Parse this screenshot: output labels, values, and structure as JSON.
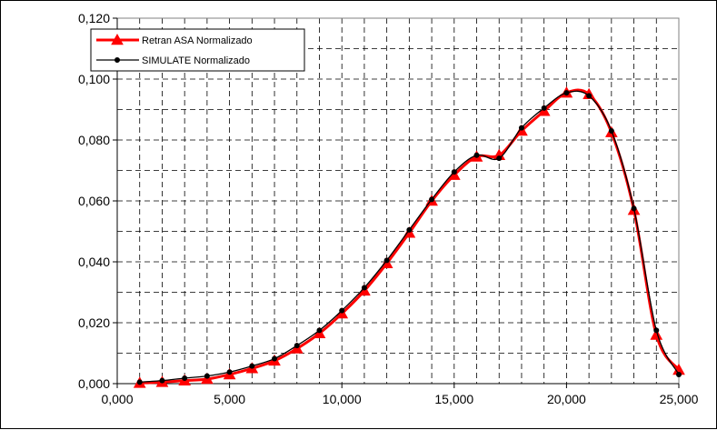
{
  "chart_data": {
    "type": "line",
    "title": "",
    "xlabel": "",
    "ylabel": "",
    "xlim": [
      0,
      25000
    ],
    "ylim": [
      0,
      0.12
    ],
    "grid": true,
    "legend_position": "top-left",
    "x_ticks": [
      {
        "value": 0,
        "label": "0,000"
      },
      {
        "value": 5000,
        "label": "5,000"
      },
      {
        "value": 10000,
        "label": "10,000"
      },
      {
        "value": 15000,
        "label": "15,000"
      },
      {
        "value": 20000,
        "label": "20,000"
      },
      {
        "value": 25000,
        "label": "25,000"
      }
    ],
    "y_ticks": [
      {
        "value": 0,
        "label": "0,000"
      },
      {
        "value": 0.02,
        "label": "0,020"
      },
      {
        "value": 0.04,
        "label": "0,040"
      },
      {
        "value": 0.06,
        "label": "0,060"
      },
      {
        "value": 0.08,
        "label": "0,080"
      },
      {
        "value": 0.1,
        "label": "0,100"
      },
      {
        "value": 0.12,
        "label": "0,120"
      }
    ],
    "x": [
      1000,
      2000,
      3000,
      4000,
      5000,
      6000,
      7000,
      8000,
      9000,
      10000,
      11000,
      12000,
      13000,
      14000,
      15000,
      16000,
      17000,
      18000,
      19000,
      20000,
      21000,
      22000,
      23000,
      24000,
      25000
    ],
    "series": [
      {
        "name": "Retran ASA Normalizado",
        "color": "#ff0000",
        "marker": "triangle",
        "values": [
          0.0002,
          0.0005,
          0.001,
          0.0015,
          0.003,
          0.005,
          0.0075,
          0.0115,
          0.0165,
          0.023,
          0.0305,
          0.0395,
          0.0495,
          0.06,
          0.0685,
          0.0745,
          0.075,
          0.083,
          0.0895,
          0.0955,
          0.095,
          0.0825,
          0.057,
          0.016,
          0.0045
        ]
      },
      {
        "name": "SIMULATE Normalizado",
        "color": "#000000",
        "marker": "circle",
        "values": [
          0.0005,
          0.001,
          0.0018,
          0.0025,
          0.0038,
          0.0058,
          0.0082,
          0.0125,
          0.0175,
          0.024,
          0.0315,
          0.0405,
          0.0505,
          0.0605,
          0.0695,
          0.075,
          0.074,
          0.084,
          0.0905,
          0.0955,
          0.0945,
          0.083,
          0.0575,
          0.0175,
          0.003
        ]
      }
    ]
  }
}
